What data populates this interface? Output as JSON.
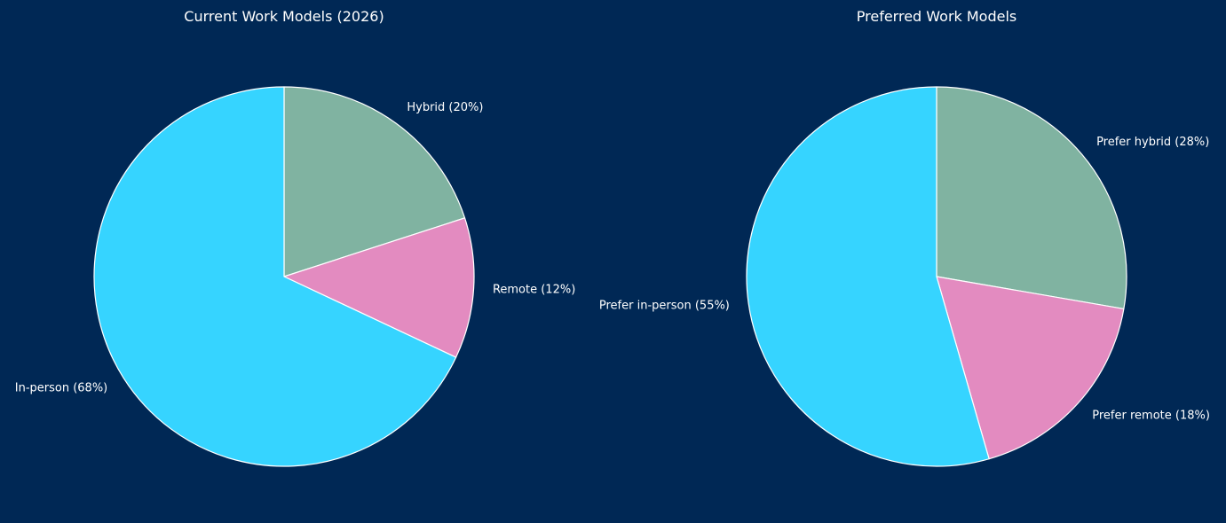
{
  "background_color": "#002855",
  "chart_data": [
    {
      "type": "pie",
      "title": "Current Work Models (2026)",
      "start_angle_deg": 90,
      "direction": "clockwise",
      "slices": [
        {
          "label": "Hybrid (20%)",
          "value": 20,
          "color": "#80b3a1"
        },
        {
          "label": "Remote (12%)",
          "value": 12,
          "color": "#e38bc0"
        },
        {
          "label": "In-person (68%)",
          "value": 68,
          "color": "#36d4ff"
        }
      ]
    },
    {
      "type": "pie",
      "title": "Preferred Work Models",
      "start_angle_deg": 90,
      "direction": "clockwise",
      "slices": [
        {
          "label": "Prefer hybrid (28%)",
          "value": 28,
          "color": "#80b3a1"
        },
        {
          "label": "Prefer remote (18%)",
          "value": 18,
          "color": "#e38bc0"
        },
        {
          "label": "Prefer in-person (55%)",
          "value": 55,
          "color": "#36d4ff"
        }
      ]
    }
  ]
}
